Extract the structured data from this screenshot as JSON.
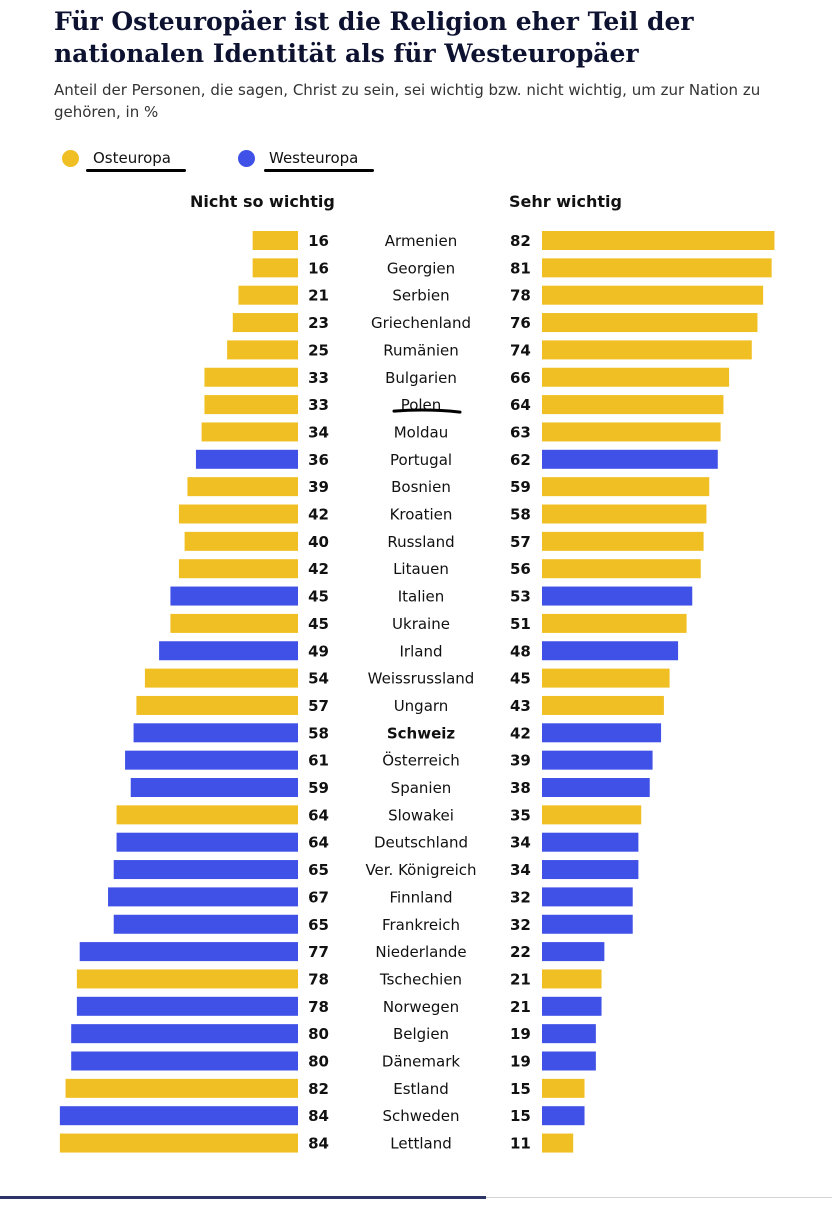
{
  "title": "Für Osteuropäer ist die Religion eher Teil der nationalen Identität als für Westeuropäer",
  "subtitle": "Anteil der Personen, die sagen, Christ zu sein, sei wichtig bzw. nicht wichtig, um zur Nation zu gehören, in %",
  "legend": [
    {
      "label": "Osteuropa",
      "color": "#f0bf23"
    },
    {
      "label": "Westeuropa",
      "color": "#3f51e6"
    }
  ],
  "chart_data": {
    "type": "bar",
    "title": "Für Osteuropäer ist die Religion eher Teil der nationalen Identität als für Westeuropäer",
    "subtitle": "Anteil der Personen, die sagen, Christ zu sein, sei wichtig bzw. nicht wichtig, um zur Nation zu gehören, in %",
    "legend_placement": "top-left",
    "grid": false,
    "xlim": [
      0,
      100
    ],
    "colors": {
      "Osteuropa": "#f0bf23",
      "Westeuropa": "#3f51e6"
    },
    "categories": [
      "Armenien",
      "Georgien",
      "Serbien",
      "Griechenland",
      "Rumänien",
      "Bulgarien",
      "Polen",
      "Moldau",
      "Portugal",
      "Bosnien",
      "Kroatien",
      "Russland",
      "Litauen",
      "Italien",
      "Ukraine",
      "Irland",
      "Weissrussland",
      "Ungarn",
      "Schweiz",
      "Österreich",
      "Spanien",
      "Slowakei",
      "Deutschland",
      "Ver. Königreich",
      "Finnland",
      "Frankreich",
      "Niederlande",
      "Tschechien",
      "Norwegen",
      "Belgien",
      "Dänemark",
      "Estland",
      "Schweden",
      "Lettland"
    ],
    "groups": [
      "Osteuropa",
      "Osteuropa",
      "Osteuropa",
      "Osteuropa",
      "Osteuropa",
      "Osteuropa",
      "Osteuropa",
      "Osteuropa",
      "Westeuropa",
      "Osteuropa",
      "Osteuropa",
      "Osteuropa",
      "Osteuropa",
      "Westeuropa",
      "Osteuropa",
      "Westeuropa",
      "Osteuropa",
      "Osteuropa",
      "Westeuropa",
      "Westeuropa",
      "Westeuropa",
      "Osteuropa",
      "Westeuropa",
      "Westeuropa",
      "Westeuropa",
      "Westeuropa",
      "Westeuropa",
      "Osteuropa",
      "Westeuropa",
      "Westeuropa",
      "Westeuropa",
      "Osteuropa",
      "Westeuropa",
      "Osteuropa"
    ],
    "highlighted": [
      "Schweiz"
    ],
    "underlined": [
      "Polen"
    ],
    "series": [
      {
        "name": "Nicht so wichtig",
        "values": [
          16,
          16,
          21,
          23,
          25,
          33,
          33,
          34,
          36,
          39,
          42,
          40,
          42,
          45,
          45,
          49,
          54,
          57,
          58,
          61,
          59,
          64,
          64,
          65,
          67,
          65,
          77,
          78,
          78,
          80,
          80,
          82,
          84,
          84
        ]
      },
      {
        "name": "Sehr wichtig",
        "values": [
          82,
          81,
          78,
          76,
          74,
          66,
          64,
          63,
          62,
          59,
          58,
          57,
          56,
          53,
          51,
          48,
          45,
          43,
          42,
          39,
          38,
          35,
          34,
          34,
          32,
          32,
          22,
          21,
          21,
          19,
          19,
          15,
          15,
          11
        ]
      }
    ]
  }
}
